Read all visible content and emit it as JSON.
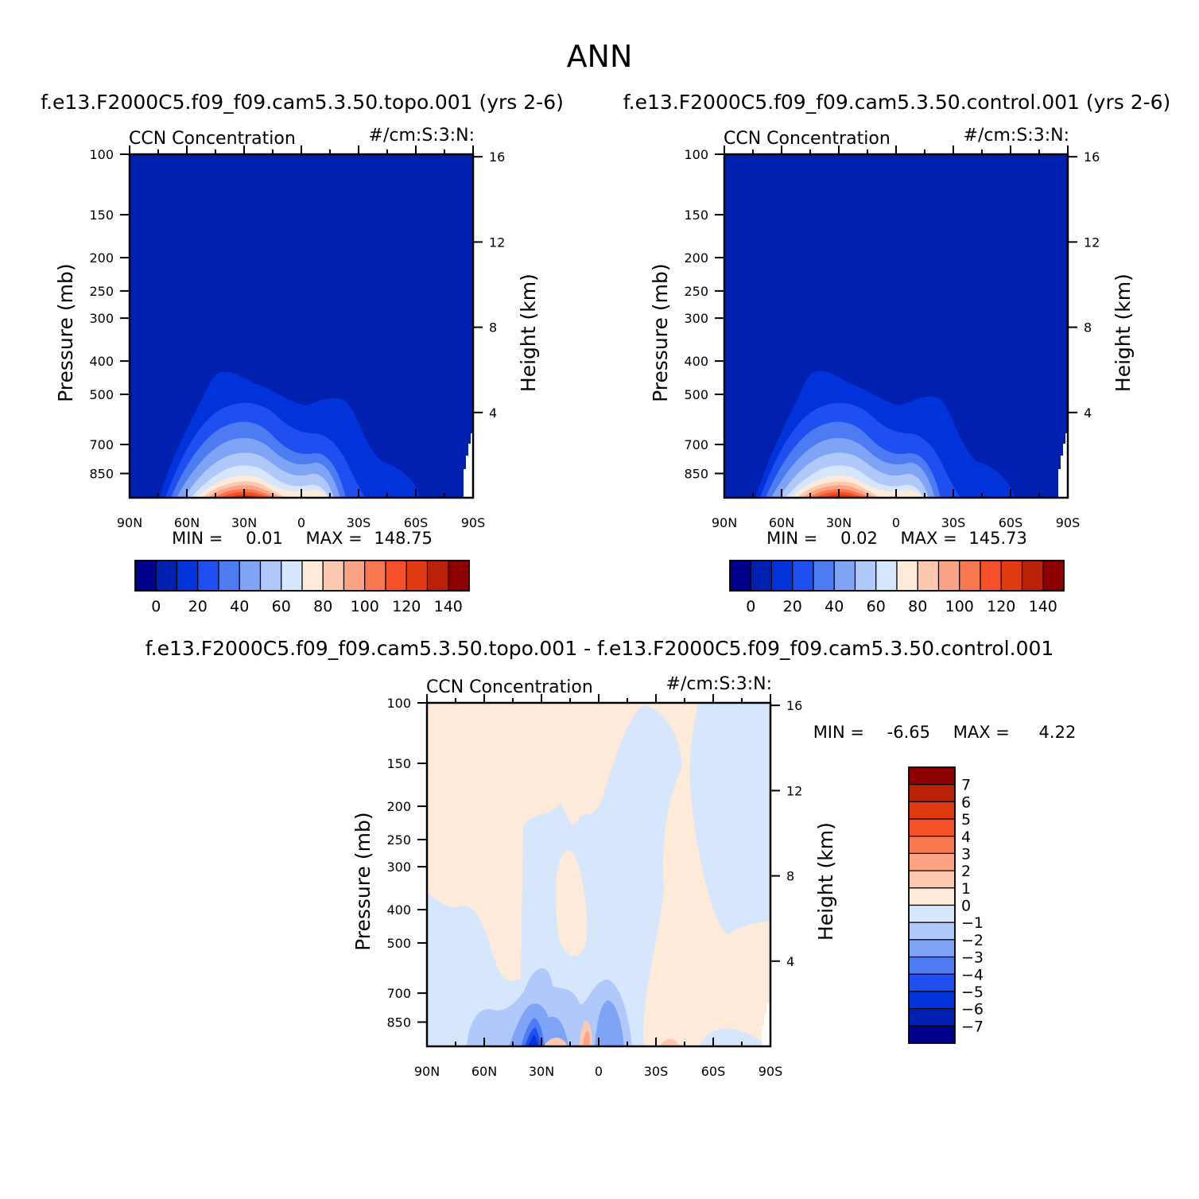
{
  "page_title": "ANN",
  "colors": {
    "seq": [
      "#00008C",
      "#0020B0",
      "#0033D9",
      "#1F4FF0",
      "#4D7BF2",
      "#7FA3F5",
      "#B0C8FA",
      "#D6E6FC",
      "#FDEAD9",
      "#FDC7B0",
      "#FCA285",
      "#FA7850",
      "#F5502A",
      "#E03A10",
      "#BA2208",
      "#8C0000"
    ],
    "div": [
      "#00008C",
      "#0020B0",
      "#0033D9",
      "#1F4FF0",
      "#4D7BF2",
      "#7FA3F5",
      "#B0C8FA",
      "#D6E6FC",
      "#FDEAD9",
      "#FDC7B0",
      "#FCA285",
      "#FA7850",
      "#F5502A",
      "#E03A10",
      "#BA2208",
      "#8C0000"
    ]
  },
  "chart_data": [
    {
      "type": "heatmap",
      "title": "f.e13.F2000C5.f09_f09.cam5.3.50.topo.001  (yrs 2-6)",
      "subtitle_left": "CCN Concentration",
      "subtitle_right": "#/cm:S:3:N:",
      "ylabel": "Pressure (mb)",
      "ylabel_right": "Height (km)",
      "x_ticks": [
        "90N",
        "60N",
        "30N",
        "0",
        "30S",
        "60S",
        "90S"
      ],
      "y_ticks": [
        "100",
        "150",
        "200",
        "250",
        "300",
        "400",
        "500",
        "700",
        "850"
      ],
      "y_values": [
        100,
        150,
        200,
        250,
        300,
        400,
        500,
        700,
        850
      ],
      "y_range": [
        100,
        1000
      ],
      "height_ticks": [
        "16",
        "12",
        "8",
        "4"
      ],
      "height_values": [
        16,
        12,
        8,
        4
      ],
      "min_label": "MIN =",
      "min_value": "0.01",
      "max_label": "MAX =",
      "max_value": "148.75",
      "colorbar_labels": [
        "0",
        "20",
        "40",
        "60",
        "80",
        "100",
        "120",
        "140"
      ],
      "colorbar_levels": [
        0,
        20,
        40,
        60,
        80,
        100,
        120,
        140
      ],
      "colorbar_range": [
        -10,
        150
      ]
    },
    {
      "type": "heatmap",
      "title": "f.e13.F2000C5.f09_f09.cam5.3.50.control.001  (yrs 2-6)",
      "subtitle_left": "CCN Concentration",
      "subtitle_right": "#/cm:S:3:N:",
      "ylabel": "Pressure (mb)",
      "ylabel_right": "Height (km)",
      "x_ticks": [
        "90N",
        "60N",
        "30N",
        "0",
        "30S",
        "60S",
        "90S"
      ],
      "y_ticks": [
        "100",
        "150",
        "200",
        "250",
        "300",
        "400",
        "500",
        "700",
        "850"
      ],
      "y_values": [
        100,
        150,
        200,
        250,
        300,
        400,
        500,
        700,
        850
      ],
      "y_range": [
        100,
        1000
      ],
      "height_ticks": [
        "16",
        "12",
        "8",
        "4"
      ],
      "height_values": [
        16,
        12,
        8,
        4
      ],
      "min_label": "MIN =",
      "min_value": "0.02",
      "max_label": "MAX =",
      "max_value": "145.73",
      "colorbar_labels": [
        "0",
        "20",
        "40",
        "60",
        "80",
        "100",
        "120",
        "140"
      ],
      "colorbar_levels": [
        0,
        20,
        40,
        60,
        80,
        100,
        120,
        140
      ],
      "colorbar_range": [
        -10,
        150
      ]
    },
    {
      "type": "heatmap",
      "title": "f.e13.F2000C5.f09_f09.cam5.3.50.topo.001 - f.e13.F2000C5.f09_f09.cam5.3.50.control.001",
      "subtitle_left": "CCN Concentration",
      "subtitle_right": "#/cm:S:3:N:",
      "ylabel": "Pressure (mb)",
      "ylabel_right": "Height (km)",
      "x_ticks": [
        "90N",
        "60N",
        "30N",
        "0",
        "30S",
        "60S",
        "90S"
      ],
      "y_ticks": [
        "100",
        "150",
        "200",
        "250",
        "300",
        "400",
        "500",
        "700",
        "850"
      ],
      "y_values": [
        100,
        150,
        200,
        250,
        300,
        400,
        500,
        700,
        850
      ],
      "y_range": [
        100,
        1000
      ],
      "height_ticks": [
        "16",
        "12",
        "8",
        "4"
      ],
      "height_values": [
        16,
        12,
        8,
        4
      ],
      "min_label": "MIN =",
      "min_value": "-6.65",
      "max_label": "MAX =",
      "max_value": "4.22",
      "colorbar_labels": [
        "7",
        "6",
        "5",
        "4",
        "3",
        "2",
        "1",
        "0",
        "-1",
        "-2",
        "-3",
        "-4",
        "-5",
        "-6",
        "-7"
      ],
      "colorbar_levels": [
        7,
        6,
        5,
        4,
        3,
        2,
        1,
        0,
        -1,
        -2,
        -3,
        -4,
        -5,
        -6,
        -7
      ],
      "colorbar_range": [
        -8,
        8
      ]
    }
  ]
}
